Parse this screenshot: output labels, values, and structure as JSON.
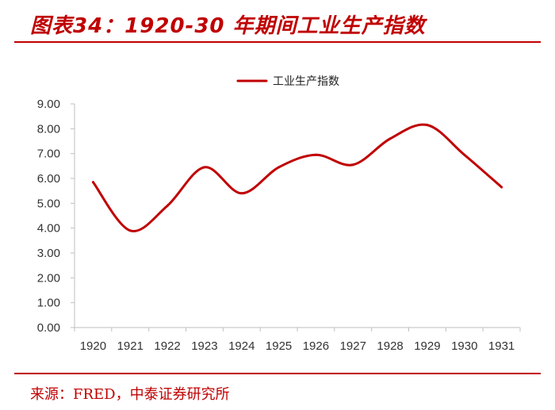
{
  "header": {
    "title": "图表34：1920-30 年期间工业生产指数"
  },
  "footer": {
    "source": "来源：FRED，中泰证券研究所"
  },
  "colors": {
    "accent": "#c00000",
    "line": "#c00000",
    "axis": "#bfbfbf"
  },
  "chart_data": {
    "type": "line",
    "title": "",
    "xlabel": "",
    "ylabel": "",
    "categories": [
      "1920",
      "1921",
      "1922",
      "1923",
      "1924",
      "1925",
      "1926",
      "1927",
      "1928",
      "1929",
      "1930",
      "1931"
    ],
    "series": [
      {
        "name": "工业生产指数",
        "values": [
          5.85,
          3.9,
          4.9,
          6.45,
          5.4,
          6.45,
          6.95,
          6.55,
          7.6,
          8.15,
          6.95,
          5.65
        ]
      }
    ],
    "ylim": [
      0,
      9
    ],
    "yticks": [
      "0.00",
      "1.00",
      "2.00",
      "3.00",
      "4.00",
      "5.00",
      "6.00",
      "7.00",
      "8.00",
      "9.00"
    ],
    "grid": false,
    "legend_position": "top-center",
    "smooth": true
  }
}
